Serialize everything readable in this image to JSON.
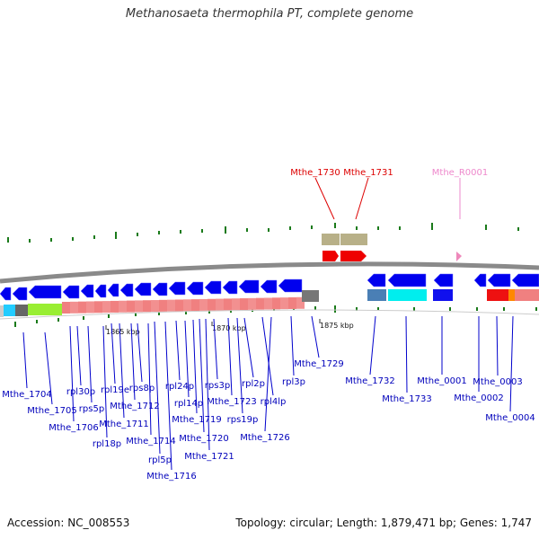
{
  "title": "Methanosaeta thermophila PT, complete genome",
  "accession": "Accession: NC_008553",
  "summary": "Topology: circular; Length: 1,879,471 bp; Genes: 1,747",
  "scale_labels": [
    "1865 kbp",
    "1870 kbp",
    "1875 kbp"
  ],
  "colors": {
    "cds_forward": "#ee0000",
    "cds_reverse": "#0000ee",
    "rna": "#ee88bb",
    "gene_bar": "#b8b088",
    "backbone": "#888888",
    "label_link": "#0000cc"
  },
  "top_labels": [
    {
      "text": "Mthe_1730",
      "color": "#dd0000"
    },
    {
      "text": "Mthe_1731",
      "color": "#dd0000"
    },
    {
      "text": "Mthe_R0001",
      "color": "#ee88cc"
    }
  ],
  "bottom_labels": [
    "Mthe_1704",
    "Mthe_1705",
    "Mthe_1706",
    "rpl30p",
    "rps5p",
    "rpl18p",
    "rpl19e",
    "Mthe_1711",
    "Mthe_1712",
    "rps8p",
    "Mthe_1714",
    "rpl5p",
    "Mthe_1716",
    "rpl24p",
    "rpl14p",
    "Mthe_1719",
    "Mthe_1720",
    "Mthe_1721",
    "rps3p",
    "Mthe_1723",
    "rpl2p",
    "rps19p",
    "rpl4lp",
    "Mthe_1726",
    "rpl3p",
    "Mthe_1729",
    "Mthe_1732",
    "Mthe_1733",
    "Mthe_0001",
    "Mthe_0002",
    "Mthe_0003",
    "Mthe_0004"
  ]
}
